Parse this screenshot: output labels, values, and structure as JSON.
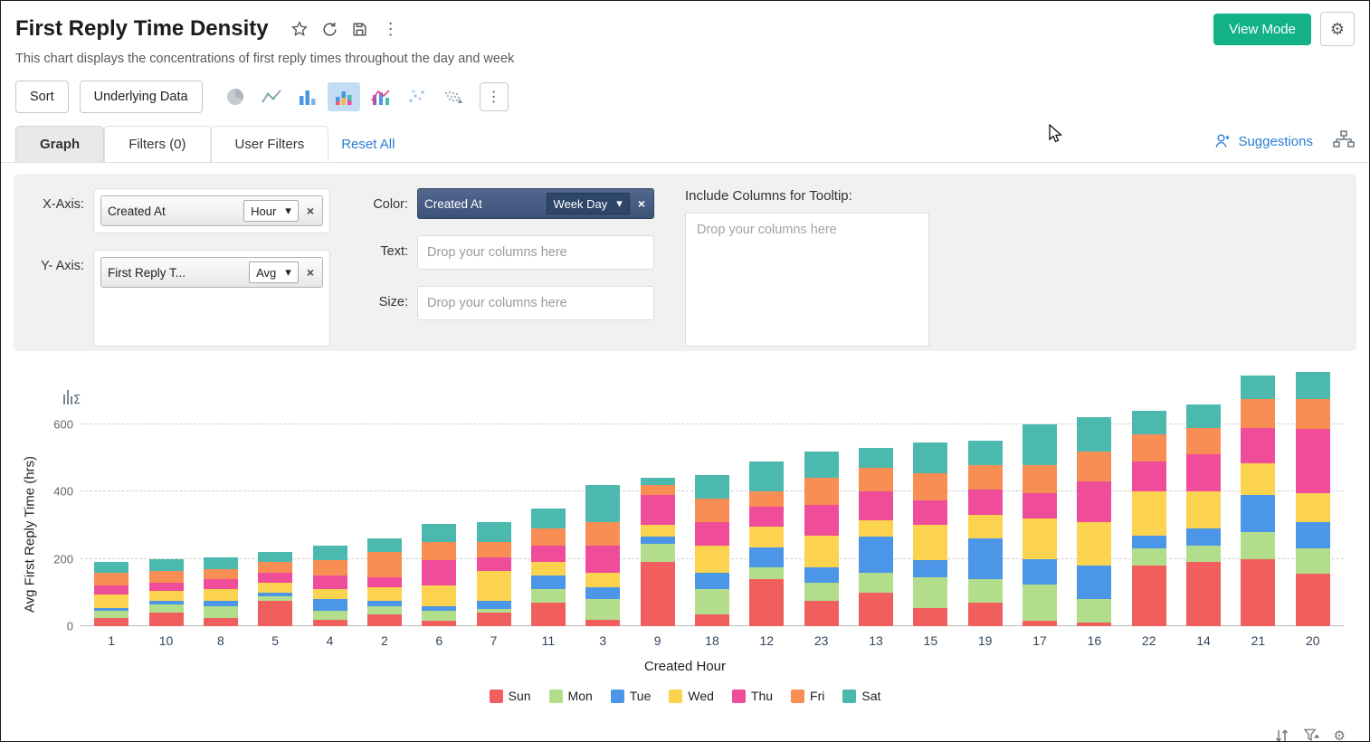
{
  "header": {
    "title": "First Reply Time Density",
    "subtitle": "This chart displays the concentrations of first reply times throughout the day and week",
    "view_mode_label": "View Mode"
  },
  "toolbar": {
    "sort_label": "Sort",
    "underlying_data_label": "Underlying Data"
  },
  "tabs": {
    "graph": "Graph",
    "filters": "Filters  (0)",
    "user_filters": "User Filters",
    "reset_all": "Reset All",
    "suggestions": "Suggestions"
  },
  "config": {
    "x_axis_label": "X-Axis:",
    "y_axis_label": "Y- Axis:",
    "color_label": "Color:",
    "text_label": "Text:",
    "size_label": "Size:",
    "tooltip_label": "Include Columns for Tooltip:",
    "x_axis_field": "Created At",
    "x_axis_agg": "Hour",
    "y_axis_field": "First Reply T...",
    "y_axis_agg": "Avg",
    "color_field": "Created At",
    "color_agg": "Week Day",
    "drop_placeholder": "Drop your columns here"
  },
  "colors": {
    "accent_green": "#12b188",
    "link_blue": "#2b7bd3",
    "selected_icon_bg": "#c3ddf5",
    "color_pill_dark": "#3c5277"
  },
  "chart_data": {
    "type": "bar",
    "stacked": true,
    "title": "",
    "xlabel": "Created Hour",
    "ylabel": "Avg First Reply Time (hrs)",
    "ylim": [
      0,
      760
    ],
    "yticks": [
      0,
      200,
      400,
      600
    ],
    "grid": "dashed-horizontal",
    "legend_position": "bottom",
    "categories": [
      "1",
      "10",
      "8",
      "5",
      "4",
      "2",
      "6",
      "7",
      "11",
      "3",
      "9",
      "18",
      "12",
      "23",
      "13",
      "15",
      "19",
      "17",
      "16",
      "22",
      "14",
      "21",
      "20"
    ],
    "series": [
      {
        "name": "Sun",
        "color": "#f15e5e",
        "values": [
          25,
          40,
          25,
          75,
          20,
          35,
          15,
          40,
          70,
          20,
          190,
          35,
          140,
          75,
          100,
          55,
          70,
          15,
          10,
          180,
          190,
          200,
          155
        ]
      },
      {
        "name": "Mon",
        "color": "#b2dd8b",
        "values": [
          20,
          25,
          35,
          15,
          25,
          25,
          30,
          10,
          40,
          60,
          55,
          75,
          35,
          55,
          60,
          90,
          70,
          110,
          70,
          50,
          50,
          80,
          75
        ]
      },
      {
        "name": "Tue",
        "color": "#4b96e6",
        "values": [
          10,
          10,
          15,
          10,
          35,
          15,
          15,
          25,
          40,
          35,
          20,
          50,
          60,
          45,
          105,
          50,
          120,
          75,
          100,
          40,
          50,
          110,
          80
        ]
      },
      {
        "name": "Wed",
        "color": "#fbd34f",
        "values": [
          40,
          30,
          35,
          30,
          30,
          40,
          60,
          90,
          40,
          45,
          35,
          80,
          60,
          95,
          50,
          105,
          70,
          120,
          130,
          130,
          110,
          95,
          85
        ]
      },
      {
        "name": "Thu",
        "color": "#ef4d9a",
        "values": [
          25,
          25,
          30,
          30,
          40,
          30,
          75,
          40,
          50,
          80,
          90,
          70,
          60,
          90,
          85,
          75,
          75,
          75,
          120,
          90,
          110,
          105,
          190
        ]
      },
      {
        "name": "Fri",
        "color": "#f98e54",
        "values": [
          40,
          35,
          30,
          30,
          45,
          75,
          55,
          45,
          50,
          70,
          30,
          70,
          45,
          80,
          70,
          80,
          75,
          85,
          90,
          80,
          80,
          85,
          90
        ]
      },
      {
        "name": "Sat",
        "color": "#4cb9ae",
        "values": [
          30,
          35,
          35,
          30,
          45,
          40,
          55,
          60,
          60,
          110,
          20,
          70,
          90,
          80,
          60,
          90,
          70,
          120,
          100,
          70,
          70,
          70,
          80
        ]
      }
    ]
  }
}
